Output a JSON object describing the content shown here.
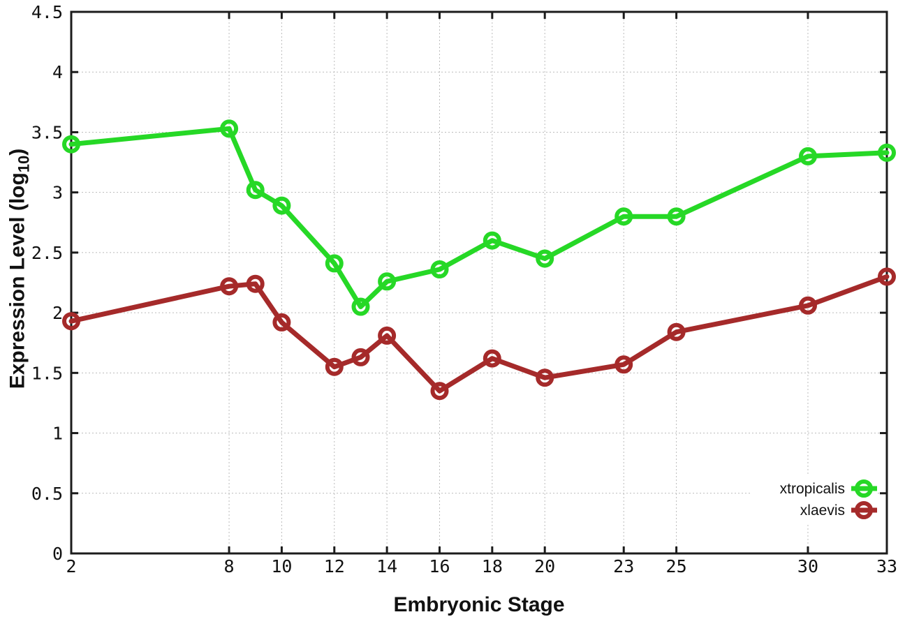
{
  "chart_data": {
    "type": "line",
    "title": "",
    "xlabel": "Embryonic Stage",
    "ylabel": "Expression Level (log10)",
    "ylabel_parts": {
      "main": "Expression Level (log",
      "sub": "10",
      "close": ")"
    },
    "x": [
      2,
      8,
      9,
      10,
      12,
      13,
      14,
      16,
      18,
      20,
      23,
      25,
      30,
      33
    ],
    "series": [
      {
        "name": "xtropicalis",
        "color": "#26d826",
        "values": [
          3.4,
          3.53,
          3.02,
          2.89,
          2.41,
          2.05,
          2.26,
          2.36,
          2.6,
          2.45,
          2.8,
          2.8,
          3.3,
          3.33
        ]
      },
      {
        "name": "xlaevis",
        "color": "#a52a2a",
        "values": [
          1.93,
          2.22,
          2.24,
          1.92,
          1.55,
          1.63,
          1.81,
          1.35,
          1.62,
          1.46,
          1.57,
          1.84,
          2.06,
          2.3
        ]
      }
    ],
    "xticks": [
      2,
      8,
      10,
      12,
      14,
      16,
      18,
      20,
      23,
      25,
      30,
      33
    ],
    "xtick_labels": [
      "2",
      "8",
      "10",
      "12",
      "14",
      "16",
      "18",
      "20",
      "23",
      "25",
      "30",
      "33"
    ],
    "yticks": [
      0,
      0.5,
      1,
      1.5,
      2,
      2.5,
      3,
      3.5,
      4,
      4.5
    ],
    "ytick_labels": [
      "0",
      "0.5",
      "1",
      "1.5",
      "2",
      "2.5",
      "3",
      "3.5",
      "4",
      "4.5"
    ],
    "xlim": [
      2,
      33
    ],
    "ylim": [
      0,
      4.5
    ],
    "grid": true,
    "legend_position": "bottom-right-inside",
    "marker": "open-circle",
    "axis_color": "#1c1c1c",
    "grid_color": "#bbbbbb"
  }
}
